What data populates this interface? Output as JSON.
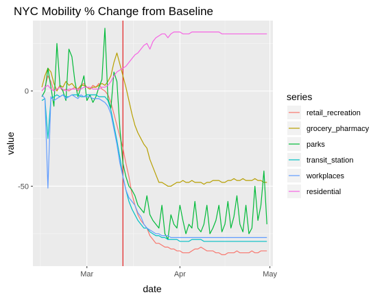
{
  "chart_data": {
    "type": "line",
    "title": "NYC Mobility % Change from Baseline",
    "xlabel": "date",
    "ylabel": "value",
    "legend_title": "series",
    "legend_position": "right",
    "grid": true,
    "x_start": "2020-02-15",
    "x_end": "2020-04-30",
    "xlim": [
      "2020-02-12",
      "2020-05-02"
    ],
    "ylim": [
      -92,
      37
    ],
    "x_ticks": [
      {
        "date": "2020-03-01",
        "label": "Mar"
      },
      {
        "date": "2020-04-01",
        "label": "Apr"
      },
      {
        "date": "2020-05-01",
        "label": "May"
      }
    ],
    "y_ticks": [
      {
        "value": 0,
        "label": "0"
      },
      {
        "value": -50,
        "label": "-50"
      }
    ],
    "vline": {
      "date": "2020-03-13",
      "color": "#e41a1c"
    },
    "series": [
      {
        "name": "retail_recreation",
        "color": "#F8766D",
        "values": [
          0,
          2,
          8,
          5,
          0,
          1,
          2,
          0,
          1,
          0,
          1,
          2,
          0,
          3,
          4,
          2,
          1,
          3,
          2,
          4,
          1,
          0,
          -2,
          -6,
          -12,
          -18,
          -24,
          -30,
          -38,
          -45,
          -54,
          -60,
          -65,
          -68,
          -70,
          -72,
          -76,
          -78,
          -80,
          -80,
          -81,
          -82,
          -82,
          -83,
          -83,
          -84,
          -84,
          -85,
          -85,
          -85,
          -84,
          -83,
          -83,
          -82,
          -83,
          -84,
          -84,
          -84,
          -85,
          -85,
          -86,
          -86,
          -85,
          -85,
          -85,
          -84,
          -85,
          -85,
          -85,
          -85,
          -84,
          -85,
          -85,
          -84,
          -84,
          -84
        ]
      },
      {
        "name": "grocery_pharmacy",
        "color": "#B79F00",
        "values": [
          2,
          8,
          12,
          10,
          4,
          0,
          3,
          2,
          5,
          3,
          4,
          2,
          1,
          3,
          3,
          2,
          1,
          2,
          2,
          3,
          4,
          3,
          5,
          8,
          15,
          20,
          14,
          8,
          2,
          -5,
          -12,
          -18,
          -22,
          -25,
          -28,
          -30,
          -36,
          -40,
          -44,
          -48,
          -48,
          -49,
          -50,
          -50,
          -49,
          -48,
          -48,
          -47,
          -48,
          -48,
          -47,
          -48,
          -48,
          -48,
          -49,
          -48,
          -48,
          -47,
          -47,
          -47,
          -48,
          -48,
          -47,
          -47,
          -46,
          -47,
          -47,
          -46,
          -47,
          -47,
          -47,
          -46,
          -47,
          -47,
          -48,
          -48
        ]
      },
      {
        "name": "parks",
        "color": "#00BA38",
        "values": [
          -3,
          0,
          12,
          2,
          -8,
          25,
          3,
          0,
          -5,
          22,
          18,
          5,
          -3,
          2,
          8,
          -5,
          -2,
          -6,
          -3,
          2,
          6,
          33,
          -4,
          -9,
          10,
          5,
          -20,
          -38,
          -45,
          -50,
          -52,
          -55,
          -60,
          -62,
          -64,
          -55,
          -65,
          -68,
          -70,
          -72,
          -60,
          -75,
          -78,
          -65,
          -70,
          -72,
          -60,
          -68,
          -75,
          -70,
          -72,
          -58,
          -72,
          -74,
          -70,
          -60,
          -75,
          -72,
          -68,
          -60,
          -74,
          -70,
          -58,
          -72,
          -66,
          -55,
          -70,
          -74,
          -60,
          -75,
          -72,
          -50,
          -68,
          -60,
          -42,
          -70
        ]
      },
      {
        "name": "transit_station",
        "color": "#00BFC4",
        "values": [
          -5,
          -4,
          -25,
          -4,
          -3,
          -2,
          -3,
          -2,
          -3,
          -3,
          -2,
          -2,
          -2,
          -3,
          -3,
          -2,
          -2,
          -2,
          -2,
          -3,
          -3,
          -3,
          -5,
          -10,
          -18,
          -26,
          -35,
          -45,
          -52,
          -58,
          -62,
          -65,
          -68,
          -70,
          -72,
          -72,
          -74,
          -75,
          -76,
          -76,
          -77,
          -77,
          -78,
          -78,
          -78,
          -78,
          -79,
          -79,
          -79,
          -79,
          -78,
          -78,
          -78,
          -78,
          -79,
          -79,
          -79,
          -79,
          -79,
          -79,
          -79,
          -79,
          -79,
          -79,
          -79,
          -79,
          -79,
          -79,
          -79,
          -79,
          -79,
          -79,
          -79,
          -79,
          -79,
          -79
        ]
      },
      {
        "name": "workplaces",
        "color": "#619CFF",
        "values": [
          -2,
          -4,
          -51,
          -3,
          -5,
          -4,
          -3,
          -2,
          -4,
          -3,
          -2,
          -3,
          -4,
          -2,
          -3,
          -3,
          -3,
          -4,
          -4,
          -4,
          -5,
          -6,
          -8,
          -12,
          -20,
          -28,
          -38,
          -45,
          -52,
          -56,
          -58,
          -60,
          -64,
          -66,
          -70,
          -72,
          -73,
          -74,
          -75,
          -75,
          -76,
          -76,
          -76,
          -77,
          -77,
          -77,
          -77,
          -77,
          -77,
          -77,
          -77,
          -77,
          -77,
          -77,
          -77,
          -77,
          -77,
          -77,
          -77,
          -77,
          -77,
          -77,
          -77,
          -77,
          -77,
          -77,
          -77,
          -77,
          -77,
          -77,
          -77,
          -77,
          -77,
          -77,
          -77,
          -77
        ]
      },
      {
        "name": "residential",
        "color": "#F564E3",
        "values": [
          0,
          2,
          3,
          1,
          0,
          1,
          2,
          1,
          0,
          1,
          1,
          1,
          1,
          1,
          2,
          2,
          2,
          1,
          1,
          1,
          2,
          2,
          3,
          5,
          8,
          10,
          11,
          12,
          13,
          15,
          17,
          19,
          20,
          22,
          24,
          25,
          22,
          26,
          28,
          29,
          30,
          30,
          28,
          30,
          31,
          31,
          31,
          30,
          30,
          30,
          31,
          31,
          31,
          31,
          31,
          31,
          31,
          31,
          31,
          31,
          30,
          30,
          30,
          30,
          30,
          30,
          30,
          30,
          30,
          30,
          30,
          30,
          30,
          30,
          30,
          30
        ]
      }
    ]
  }
}
